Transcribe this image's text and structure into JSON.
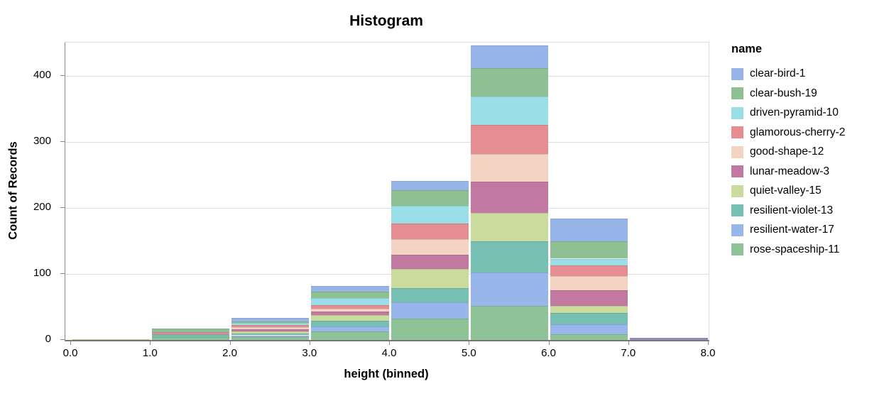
{
  "chart_data": {
    "type": "bar",
    "subtype": "stacked-histogram",
    "title": "Histogram",
    "xlabel": "height (binned)",
    "ylabel": "Count of Records",
    "legend_title": "name",
    "legend_position": "right",
    "grid": "horizontal-only",
    "xlim": [
      0,
      8
    ],
    "ylim": [
      0,
      450
    ],
    "x_ticks": [
      "0.0",
      "1.0",
      "2.0",
      "3.0",
      "4.0",
      "5.0",
      "6.0",
      "7.0",
      "8.0"
    ],
    "y_ticks": [
      0,
      100,
      200,
      300,
      400
    ],
    "bins": [
      [
        0,
        1
      ],
      [
        1,
        2
      ],
      [
        2,
        3
      ],
      [
        3,
        4
      ],
      [
        4,
        5
      ],
      [
        5,
        6
      ],
      [
        6,
        7
      ],
      [
        7,
        8
      ]
    ],
    "bin_totals": [
      1,
      17,
      33,
      82,
      241,
      446,
      184,
      3
    ],
    "stack_order": "bottom of stack = last legend entry (rose-spaceship-11), top = first (clear-bird-1)",
    "series": [
      {
        "name": "clear-bird-1",
        "color": "#97b4e9",
        "values": [
          0,
          0,
          5,
          9,
          14,
          35,
          35,
          1
        ]
      },
      {
        "name": "clear-bush-19",
        "color": "#8fc094",
        "values": [
          0,
          5,
          2,
          10,
          24,
          43,
          26,
          0
        ]
      },
      {
        "name": "driven-pyramid-10",
        "color": "#9adfe8",
        "values": [
          0,
          0,
          3,
          10,
          27,
          43,
          10,
          0
        ]
      },
      {
        "name": "glamorous-cherry-2",
        "color": "#e68d92",
        "values": [
          0,
          3,
          4,
          6,
          23,
          44,
          16,
          0
        ]
      },
      {
        "name": "good-shape-12",
        "color": "#f3d3c2",
        "values": [
          0,
          0,
          3,
          4,
          24,
          41,
          22,
          0
        ]
      },
      {
        "name": "lunar-meadow-3",
        "color": "#c178a1",
        "values": [
          0,
          0,
          3,
          5,
          22,
          48,
          23,
          1
        ]
      },
      {
        "name": "quiet-valley-15",
        "color": "#c9dc9e",
        "values": [
          1,
          0,
          3,
          9,
          29,
          43,
          11,
          0
        ]
      },
      {
        "name": "resilient-violet-13",
        "color": "#76bfb2",
        "values": [
          0,
          5,
          3,
          9,
          21,
          47,
          17,
          0
        ]
      },
      {
        "name": "resilient-water-17",
        "color": "#98b6ea",
        "values": [
          0,
          0,
          3,
          7,
          25,
          50,
          15,
          1
        ]
      },
      {
        "name": "rose-spaceship-11",
        "color": "#8ec297",
        "values": [
          0,
          4,
          4,
          13,
          32,
          52,
          9,
          0
        ]
      }
    ],
    "style_colors": {
      "gridline": "#dddddd",
      "axis_line": "#888888",
      "text": "#000000"
    }
  }
}
